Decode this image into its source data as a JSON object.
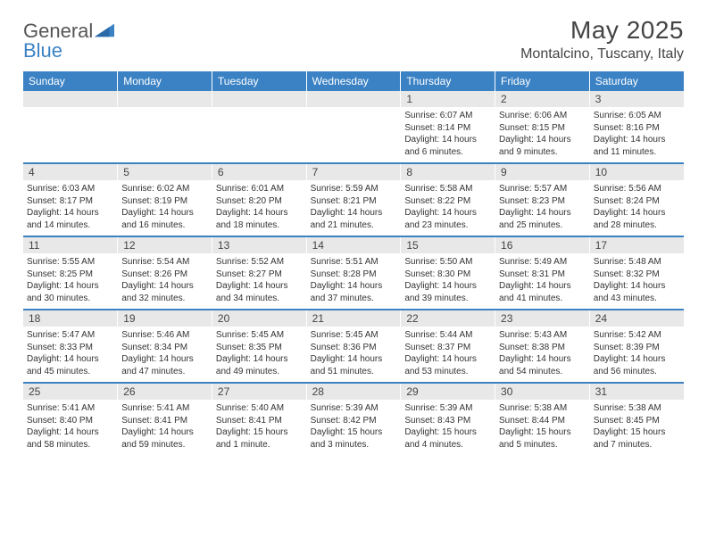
{
  "brand": {
    "part1": "General",
    "part2": "Blue"
  },
  "title": "May 2025",
  "location": "Montalcino, Tuscany, Italy",
  "colors": {
    "header_bg": "#3b82c4",
    "header_text": "#ffffff",
    "daynum_bg": "#e8e8e8",
    "text": "#333333",
    "title": "#444444",
    "row_sep": "#3b82c4"
  },
  "day_names": [
    "Sunday",
    "Monday",
    "Tuesday",
    "Wednesday",
    "Thursday",
    "Friday",
    "Saturday"
  ],
  "weeks": [
    [
      null,
      null,
      null,
      null,
      {
        "n": "1",
        "sr": "Sunrise: 6:07 AM",
        "ss": "Sunset: 8:14 PM",
        "dl": "Daylight: 14 hours and 6 minutes."
      },
      {
        "n": "2",
        "sr": "Sunrise: 6:06 AM",
        "ss": "Sunset: 8:15 PM",
        "dl": "Daylight: 14 hours and 9 minutes."
      },
      {
        "n": "3",
        "sr": "Sunrise: 6:05 AM",
        "ss": "Sunset: 8:16 PM",
        "dl": "Daylight: 14 hours and 11 minutes."
      }
    ],
    [
      {
        "n": "4",
        "sr": "Sunrise: 6:03 AM",
        "ss": "Sunset: 8:17 PM",
        "dl": "Daylight: 14 hours and 14 minutes."
      },
      {
        "n": "5",
        "sr": "Sunrise: 6:02 AM",
        "ss": "Sunset: 8:19 PM",
        "dl": "Daylight: 14 hours and 16 minutes."
      },
      {
        "n": "6",
        "sr": "Sunrise: 6:01 AM",
        "ss": "Sunset: 8:20 PM",
        "dl": "Daylight: 14 hours and 18 minutes."
      },
      {
        "n": "7",
        "sr": "Sunrise: 5:59 AM",
        "ss": "Sunset: 8:21 PM",
        "dl": "Daylight: 14 hours and 21 minutes."
      },
      {
        "n": "8",
        "sr": "Sunrise: 5:58 AM",
        "ss": "Sunset: 8:22 PM",
        "dl": "Daylight: 14 hours and 23 minutes."
      },
      {
        "n": "9",
        "sr": "Sunrise: 5:57 AM",
        "ss": "Sunset: 8:23 PM",
        "dl": "Daylight: 14 hours and 25 minutes."
      },
      {
        "n": "10",
        "sr": "Sunrise: 5:56 AM",
        "ss": "Sunset: 8:24 PM",
        "dl": "Daylight: 14 hours and 28 minutes."
      }
    ],
    [
      {
        "n": "11",
        "sr": "Sunrise: 5:55 AM",
        "ss": "Sunset: 8:25 PM",
        "dl": "Daylight: 14 hours and 30 minutes."
      },
      {
        "n": "12",
        "sr": "Sunrise: 5:54 AM",
        "ss": "Sunset: 8:26 PM",
        "dl": "Daylight: 14 hours and 32 minutes."
      },
      {
        "n": "13",
        "sr": "Sunrise: 5:52 AM",
        "ss": "Sunset: 8:27 PM",
        "dl": "Daylight: 14 hours and 34 minutes."
      },
      {
        "n": "14",
        "sr": "Sunrise: 5:51 AM",
        "ss": "Sunset: 8:28 PM",
        "dl": "Daylight: 14 hours and 37 minutes."
      },
      {
        "n": "15",
        "sr": "Sunrise: 5:50 AM",
        "ss": "Sunset: 8:30 PM",
        "dl": "Daylight: 14 hours and 39 minutes."
      },
      {
        "n": "16",
        "sr": "Sunrise: 5:49 AM",
        "ss": "Sunset: 8:31 PM",
        "dl": "Daylight: 14 hours and 41 minutes."
      },
      {
        "n": "17",
        "sr": "Sunrise: 5:48 AM",
        "ss": "Sunset: 8:32 PM",
        "dl": "Daylight: 14 hours and 43 minutes."
      }
    ],
    [
      {
        "n": "18",
        "sr": "Sunrise: 5:47 AM",
        "ss": "Sunset: 8:33 PM",
        "dl": "Daylight: 14 hours and 45 minutes."
      },
      {
        "n": "19",
        "sr": "Sunrise: 5:46 AM",
        "ss": "Sunset: 8:34 PM",
        "dl": "Daylight: 14 hours and 47 minutes."
      },
      {
        "n": "20",
        "sr": "Sunrise: 5:45 AM",
        "ss": "Sunset: 8:35 PM",
        "dl": "Daylight: 14 hours and 49 minutes."
      },
      {
        "n": "21",
        "sr": "Sunrise: 5:45 AM",
        "ss": "Sunset: 8:36 PM",
        "dl": "Daylight: 14 hours and 51 minutes."
      },
      {
        "n": "22",
        "sr": "Sunrise: 5:44 AM",
        "ss": "Sunset: 8:37 PM",
        "dl": "Daylight: 14 hours and 53 minutes."
      },
      {
        "n": "23",
        "sr": "Sunrise: 5:43 AM",
        "ss": "Sunset: 8:38 PM",
        "dl": "Daylight: 14 hours and 54 minutes."
      },
      {
        "n": "24",
        "sr": "Sunrise: 5:42 AM",
        "ss": "Sunset: 8:39 PM",
        "dl": "Daylight: 14 hours and 56 minutes."
      }
    ],
    [
      {
        "n": "25",
        "sr": "Sunrise: 5:41 AM",
        "ss": "Sunset: 8:40 PM",
        "dl": "Daylight: 14 hours and 58 minutes."
      },
      {
        "n": "26",
        "sr": "Sunrise: 5:41 AM",
        "ss": "Sunset: 8:41 PM",
        "dl": "Daylight: 14 hours and 59 minutes."
      },
      {
        "n": "27",
        "sr": "Sunrise: 5:40 AM",
        "ss": "Sunset: 8:41 PM",
        "dl": "Daylight: 15 hours and 1 minute."
      },
      {
        "n": "28",
        "sr": "Sunrise: 5:39 AM",
        "ss": "Sunset: 8:42 PM",
        "dl": "Daylight: 15 hours and 3 minutes."
      },
      {
        "n": "29",
        "sr": "Sunrise: 5:39 AM",
        "ss": "Sunset: 8:43 PM",
        "dl": "Daylight: 15 hours and 4 minutes."
      },
      {
        "n": "30",
        "sr": "Sunrise: 5:38 AM",
        "ss": "Sunset: 8:44 PM",
        "dl": "Daylight: 15 hours and 5 minutes."
      },
      {
        "n": "31",
        "sr": "Sunrise: 5:38 AM",
        "ss": "Sunset: 8:45 PM",
        "dl": "Daylight: 15 hours and 7 minutes."
      }
    ]
  ]
}
